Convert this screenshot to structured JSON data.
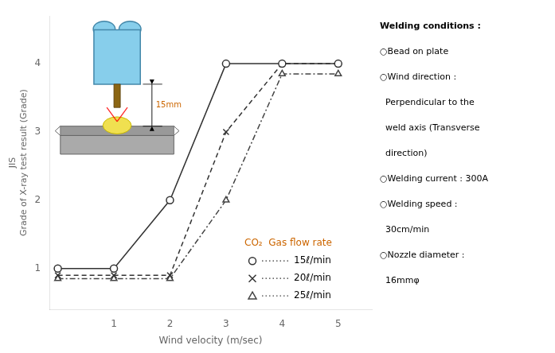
{
  "chart_data": {
    "type": "line",
    "xlabel": "Wind velocity (m/sec)",
    "ylabel": [
      "JIS",
      "Grade of X-ray test result (Grade)"
    ],
    "x": [
      0,
      1,
      2,
      3,
      4,
      5
    ],
    "series": [
      {
        "name": "15ℓ/min",
        "color": "#333333",
        "marker": "circle",
        "line_style": "solid",
        "values": [
          1.0,
          1.0,
          2.0,
          4.0,
          4.0,
          4.0
        ]
      },
      {
        "name": "20ℓ/min",
        "color": "#333333",
        "marker": "x",
        "line_style": "dashed",
        "values": [
          0.9,
          0.9,
          0.9,
          3.0,
          4.0,
          4.0
        ]
      },
      {
        "name": "25ℓ/min",
        "color": "#444444",
        "marker": "triangle",
        "line_style": "dashdot",
        "values": [
          0.85,
          0.85,
          0.85,
          2.0,
          3.85,
          3.85
        ]
      }
    ],
    "xlim": [
      -0.15,
      5.6
    ],
    "xticks": [
      {
        "value": 0,
        "label": ""
      },
      1,
      2,
      3,
      4,
      5
    ],
    "ylim": [
      0.4,
      4.7
    ],
    "yticks": [
      1,
      2,
      3,
      4
    ],
    "grid": false,
    "legend": "lower right",
    "legend_title": {
      "text": "CO₂  Gas flow rate",
      "color": "#CC6600"
    },
    "annotations": [
      {
        "text": "15mm",
        "color": "#CC6600"
      },
      {
        "text": [
          "Welding conditions :",
          "○Bead on plate",
          "○Wind direction :",
          "  Perpendicular to the",
          "  weld axis (Transverse",
          "  direction)",
          "○Welding current : 300A",
          "○Welding speed :",
          "  30cm/min",
          "○Nozzle diameter :",
          "  16mmφ"
        ]
      }
    ]
  }
}
